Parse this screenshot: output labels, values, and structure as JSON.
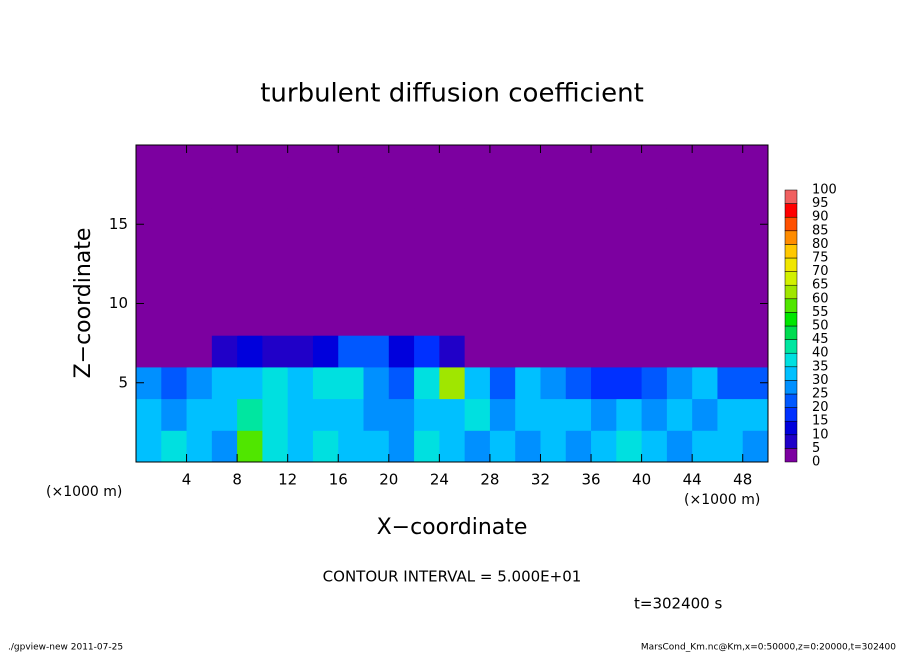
{
  "chart_data": {
    "type": "heatmap",
    "title": "turbulent diffusion coefficient",
    "x_label": "X−coordinate",
    "y_label": "Z−coordinate",
    "x_unit_labels": [
      "(×1000 m)",
      "(×1000 m)"
    ],
    "xlim": [
      0,
      50
    ],
    "xticks": [
      4,
      8,
      12,
      16,
      20,
      24,
      28,
      32,
      36,
      40,
      44,
      48
    ],
    "ylim": [
      0,
      20
    ],
    "yticks": [
      5,
      10,
      15
    ],
    "x": [
      0,
      2,
      4,
      6,
      8,
      10,
      12,
      14,
      16,
      18,
      20,
      22,
      24,
      26,
      28,
      30,
      32,
      34,
      36,
      38,
      40,
      42,
      44,
      46,
      48,
      50
    ],
    "y": [
      0,
      2,
      4,
      6,
      8,
      10,
      12,
      14,
      16,
      18,
      20
    ],
    "values": [
      [
        30,
        35,
        30,
        25,
        55,
        35,
        30,
        35,
        30,
        30,
        25,
        35,
        30,
        25,
        30,
        25,
        30,
        25,
        30,
        35,
        30,
        25,
        30,
        30,
        25
      ],
      [
        30,
        25,
        30,
        30,
        40,
        35,
        30,
        30,
        30,
        25,
        25,
        30,
        30,
        35,
        25,
        30,
        30,
        30,
        25,
        30,
        25,
        30,
        25,
        30,
        30
      ],
      [
        25,
        20,
        25,
        30,
        30,
        35,
        30,
        35,
        35,
        25,
        20,
        35,
        60,
        30,
        20,
        30,
        25,
        20,
        15,
        15,
        20,
        25,
        30,
        20,
        20
      ],
      [
        0,
        0,
        0,
        5,
        10,
        5,
        5,
        10,
        20,
        20,
        10,
        15,
        5,
        0,
        0,
        0,
        0,
        0,
        0,
        0,
        0,
        0,
        0,
        0,
        0
      ],
      [
        0,
        0,
        0,
        0,
        0,
        0,
        0,
        0,
        0,
        0,
        0,
        0,
        0,
        0,
        0,
        0,
        0,
        0,
        0,
        0,
        0,
        0,
        0,
        0,
        0
      ],
      [
        0,
        0,
        0,
        0,
        0,
        0,
        0,
        0,
        0,
        0,
        0,
        0,
        0,
        0,
        0,
        0,
        0,
        0,
        0,
        0,
        0,
        0,
        0,
        0,
        0
      ],
      [
        0,
        0,
        0,
        0,
        0,
        0,
        0,
        0,
        0,
        0,
        0,
        0,
        0,
        0,
        0,
        0,
        0,
        0,
        0,
        0,
        0,
        0,
        0,
        0,
        0
      ],
      [
        0,
        0,
        0,
        0,
        0,
        0,
        0,
        0,
        0,
        0,
        0,
        0,
        0,
        0,
        0,
        0,
        0,
        0,
        0,
        0,
        0,
        0,
        0,
        0,
        0
      ],
      [
        0,
        0,
        0,
        0,
        0,
        0,
        0,
        0,
        0,
        0,
        0,
        0,
        0,
        0,
        0,
        0,
        0,
        0,
        0,
        0,
        0,
        0,
        0,
        0,
        0
      ],
      [
        0,
        0,
        0,
        0,
        0,
        0,
        0,
        0,
        0,
        0,
        0,
        0,
        0,
        0,
        0,
        0,
        0,
        0,
        0,
        0,
        0,
        0,
        0,
        0,
        0
      ]
    ],
    "colorbar": {
      "levels": [
        0,
        5,
        10,
        15,
        20,
        25,
        30,
        35,
        40,
        45,
        50,
        55,
        60,
        65,
        70,
        75,
        80,
        85,
        90,
        95,
        100
      ],
      "colors": [
        "#7c00a0",
        "#2000c8",
        "#0000dc",
        "#0030ff",
        "#0058ff",
        "#0090ff",
        "#00c0ff",
        "#00e0e0",
        "#00e6a0",
        "#00dc50",
        "#00e600",
        "#50e600",
        "#a0e600",
        "#d2f000",
        "#f0e600",
        "#ffc800",
        "#ff8c00",
        "#ff5000",
        "#ff0000",
        "#f06060"
      ]
    },
    "contour_interval_label": "CONTOUR INTERVAL = 5.000E+01",
    "time_label": "t=302400 s",
    "footer_left": "./gpview-new  2011-07-25",
    "footer_right": "MarsCond_Km.nc@Km,x=0:50000,z=0:20000,t=302400"
  }
}
